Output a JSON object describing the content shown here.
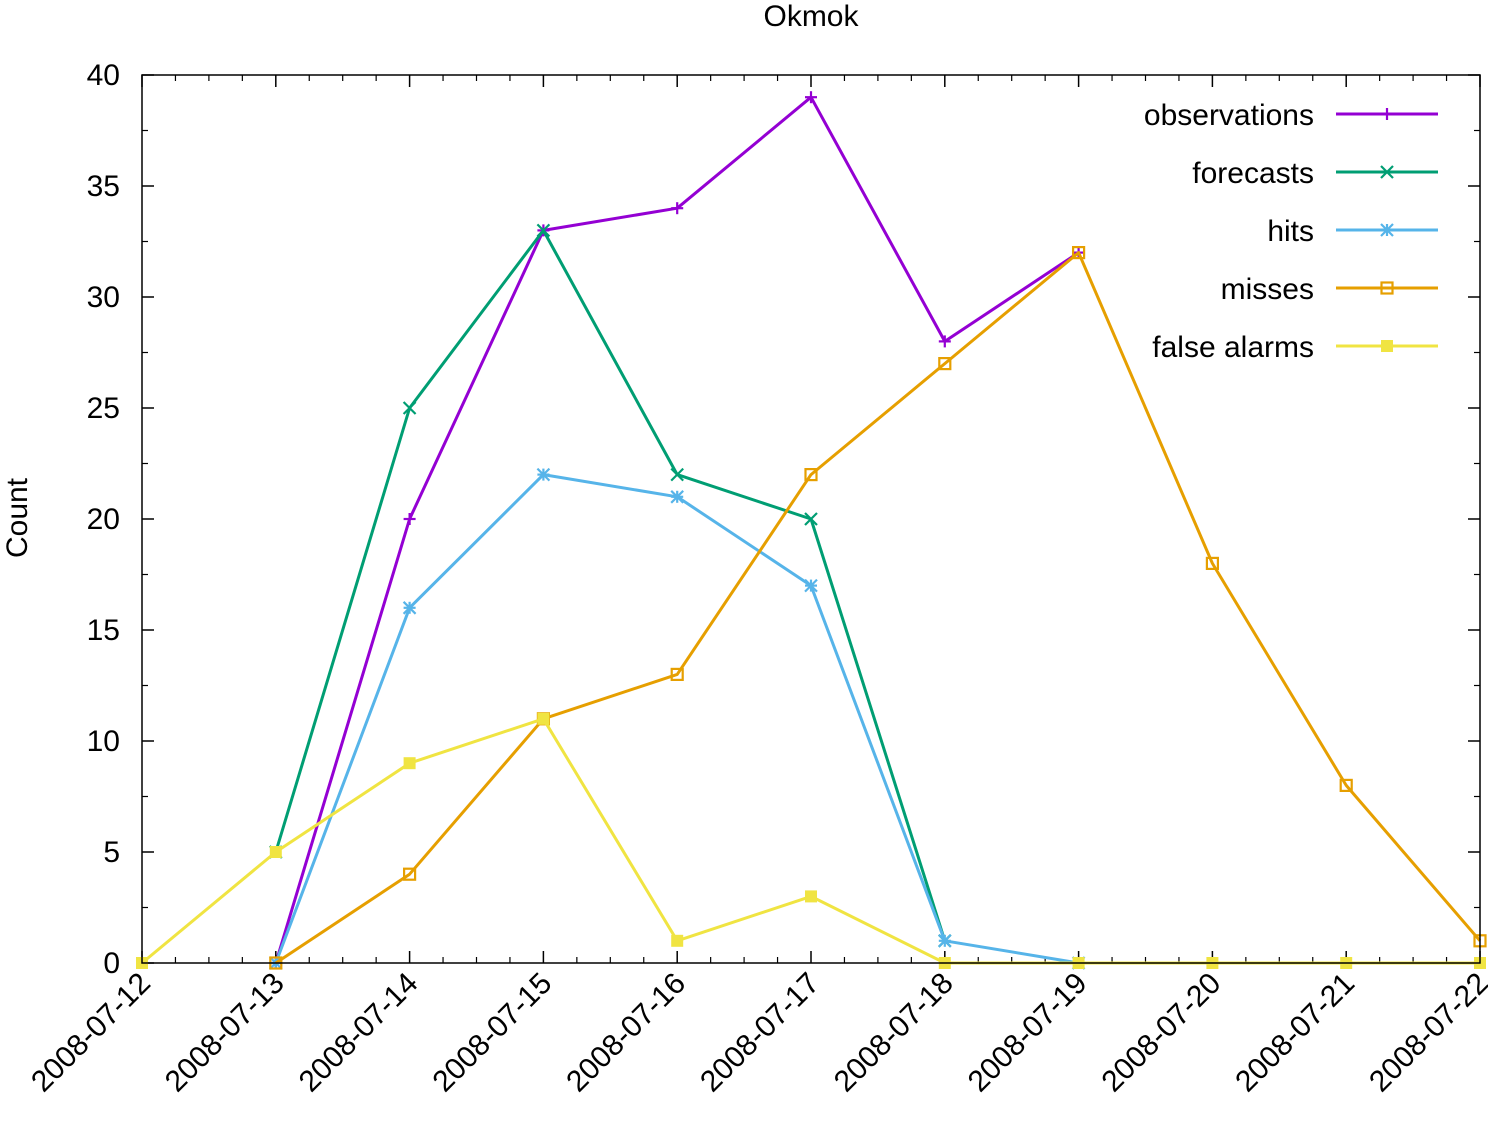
{
  "chart_data": {
    "type": "line",
    "title": "Okmok",
    "xlabel": "",
    "ylabel": "Count",
    "categories": [
      "2008-07-12",
      "2008-07-13",
      "2008-07-14",
      "2008-07-15",
      "2008-07-16",
      "2008-07-17",
      "2008-07-18",
      "2008-07-19",
      "2008-07-20",
      "2008-07-21",
      "2008-07-22"
    ],
    "ylim": [
      0,
      40
    ],
    "yticks": [
      0,
      5,
      10,
      15,
      20,
      25,
      30,
      35,
      40
    ],
    "grid": false,
    "legend_position": "top-right",
    "series": [
      {
        "name": "observations",
        "color": "#9400d3",
        "marker": "plus",
        "values": [
          null,
          0,
          20,
          33,
          34,
          39,
          28,
          32,
          null,
          null,
          null
        ]
      },
      {
        "name": "forecasts",
        "color": "#009e73",
        "marker": "cross",
        "values": [
          null,
          5,
          25,
          33,
          22,
          20,
          1,
          null,
          null,
          null,
          null
        ]
      },
      {
        "name": "hits",
        "color": "#56b4e9",
        "marker": "star",
        "values": [
          null,
          0,
          16,
          22,
          21,
          17,
          1,
          0,
          null,
          null,
          null
        ]
      },
      {
        "name": "misses",
        "color": "#e69f00",
        "marker": "open-square",
        "values": [
          null,
          0,
          4,
          11,
          13,
          22,
          27,
          32,
          18,
          8,
          1
        ]
      },
      {
        "name": "false alarms",
        "color": "#f0e442",
        "marker": "filled-square",
        "values": [
          0,
          5,
          9,
          11,
          1,
          3,
          0,
          0,
          0,
          0,
          0
        ]
      }
    ]
  }
}
